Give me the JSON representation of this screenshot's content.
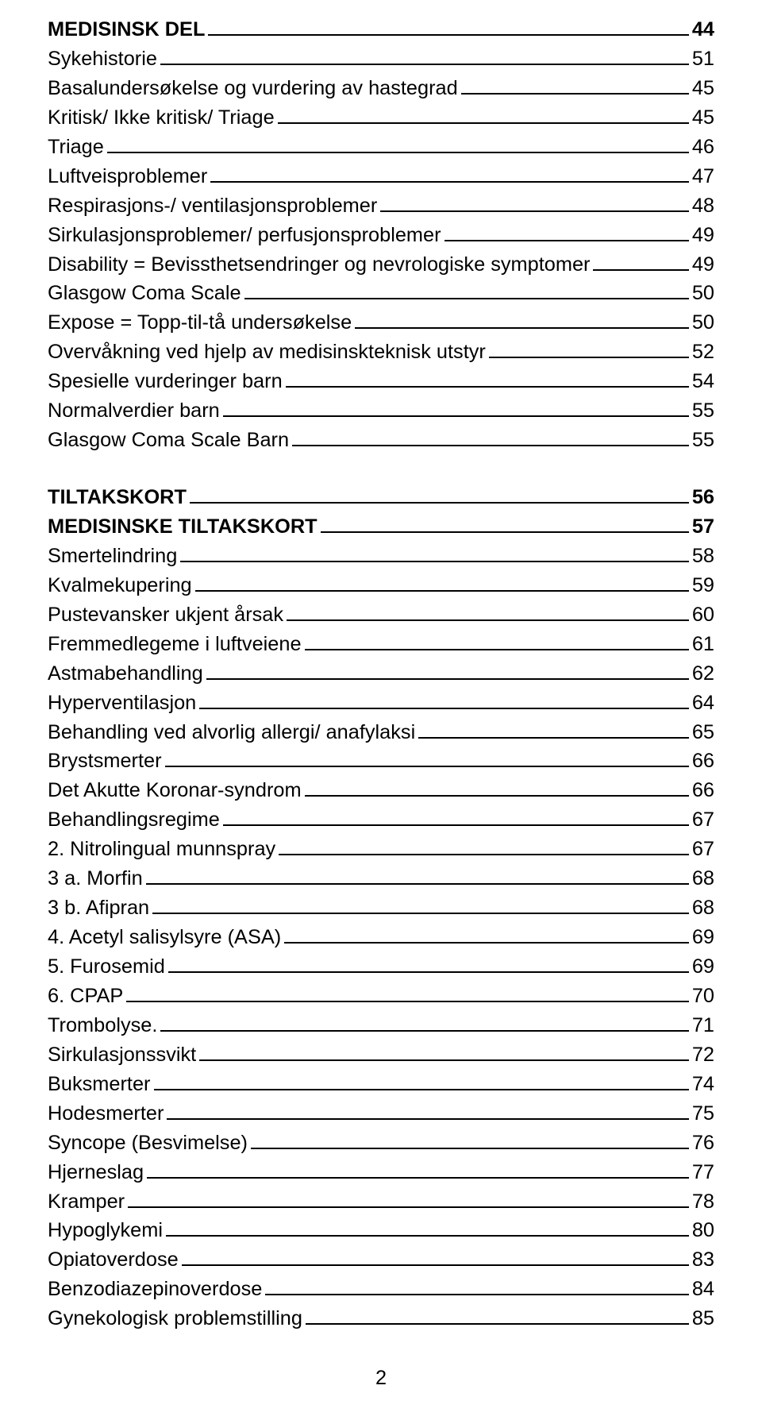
{
  "font_size_pt": 19,
  "line_height": 1.38,
  "page_number": "2",
  "entries": [
    {
      "label": "MEDISINSK DEL",
      "page": "44",
      "bold": true,
      "blank_before": false
    },
    {
      "label": "Sykehistorie",
      "page": "51",
      "bold": false,
      "blank_before": false
    },
    {
      "label": "Basalundersøkelse og vurdering av hastegrad",
      "page": "45",
      "bold": false,
      "blank_before": false
    },
    {
      "label": "Kritisk/ Ikke kritisk/ Triage",
      "page": "45",
      "bold": false,
      "blank_before": false
    },
    {
      "label": "Triage",
      "page": "46",
      "bold": false,
      "blank_before": false
    },
    {
      "label": "Luftveisproblemer",
      "page": "47",
      "bold": false,
      "blank_before": false
    },
    {
      "label": "Respirasjons-/ ventilasjonsproblemer",
      "page": "48",
      "bold": false,
      "blank_before": false
    },
    {
      "label": "Sirkulasjonsproblemer/ perfusjonsproblemer",
      "page": "49",
      "bold": false,
      "blank_before": false
    },
    {
      "label": "Disability = Bevissthetsendringer og nevrologiske symptomer",
      "page": "49",
      "bold": false,
      "blank_before": false
    },
    {
      "label": "Glasgow Coma Scale",
      "page": "50",
      "bold": false,
      "blank_before": false
    },
    {
      "label": "Expose = Topp-til-tå undersøkelse",
      "page": "50",
      "bold": false,
      "blank_before": false
    },
    {
      "label": "Overvåkning ved hjelp av medisinskteknisk utstyr",
      "page": "52",
      "bold": false,
      "blank_before": false
    },
    {
      "label": "Spesielle vurderinger barn",
      "page": "54",
      "bold": false,
      "blank_before": false
    },
    {
      "label": "Normalverdier barn",
      "page": "55",
      "bold": false,
      "blank_before": false
    },
    {
      "label": "Glasgow Coma Scale Barn",
      "page": "55",
      "bold": false,
      "blank_before": false
    },
    {
      "label": "TILTAKSKORT",
      "page": "56",
      "bold": true,
      "blank_before": true
    },
    {
      "label": "MEDISINSKE TILTAKSKORT",
      "page": "57",
      "bold": true,
      "blank_before": false
    },
    {
      "label": "Smertelindring",
      "page": "58",
      "bold": false,
      "blank_before": false
    },
    {
      "label": "Kvalmekupering",
      "page": "59",
      "bold": false,
      "blank_before": false
    },
    {
      "label": "Pustevansker ukjent årsak",
      "page": "60",
      "bold": false,
      "blank_before": false
    },
    {
      "label": "Fremmedlegeme i luftveiene",
      "page": "61",
      "bold": false,
      "blank_before": false
    },
    {
      "label": "Astmabehandling",
      "page": "62",
      "bold": false,
      "blank_before": false
    },
    {
      "label": "Hyperventilasjon",
      "page": "64",
      "bold": false,
      "blank_before": false
    },
    {
      "label": "Behandling ved alvorlig allergi/ anafylaksi",
      "page": "65",
      "bold": false,
      "blank_before": false
    },
    {
      "label": "Brystsmerter",
      "page": "66",
      "bold": false,
      "blank_before": false
    },
    {
      "label": "Det Akutte Koronar-syndrom",
      "page": "66",
      "bold": false,
      "blank_before": false
    },
    {
      "label": "Behandlingsregime",
      "page": "67",
      "bold": false,
      "blank_before": false
    },
    {
      "label": "2. Nitrolingual munnspray",
      "page": "67",
      "bold": false,
      "blank_before": false
    },
    {
      "label": "3 a. Morfin",
      "page": "68",
      "bold": false,
      "blank_before": false
    },
    {
      "label": "3 b. Afipran",
      "page": "68",
      "bold": false,
      "blank_before": false
    },
    {
      "label": "4. Acetyl salisylsyre (ASA)",
      "page": "69",
      "bold": false,
      "blank_before": false
    },
    {
      "label": "5. Furosemid",
      "page": "69",
      "bold": false,
      "blank_before": false
    },
    {
      "label": "6. CPAP",
      "page": "70",
      "bold": false,
      "blank_before": false
    },
    {
      "label": "Trombolyse.",
      "page": "71",
      "bold": false,
      "blank_before": false
    },
    {
      "label": "Sirkulasjonssvikt",
      "page": "72",
      "bold": false,
      "blank_before": false
    },
    {
      "label": "Buksmerter",
      "page": "74",
      "bold": false,
      "blank_before": false
    },
    {
      "label": "Hodesmerter",
      "page": "75",
      "bold": false,
      "blank_before": false
    },
    {
      "label": "Syncope (Besvimelse)",
      "page": "76",
      "bold": false,
      "blank_before": false
    },
    {
      "label": "Hjerneslag",
      "page": "77",
      "bold": false,
      "blank_before": false
    },
    {
      "label": "Kramper",
      "page": "78",
      "bold": false,
      "blank_before": false
    },
    {
      "label": "Hypoglykemi",
      "page": "80",
      "bold": false,
      "blank_before": false
    },
    {
      "label": "Opiatoverdose",
      "page": "83",
      "bold": false,
      "blank_before": false
    },
    {
      "label": "Benzodiazepinoverdose",
      "page": "84",
      "bold": false,
      "blank_before": false
    },
    {
      "label": "Gynekologisk problemstilling",
      "page": "85",
      "bold": false,
      "blank_before": false
    }
  ]
}
